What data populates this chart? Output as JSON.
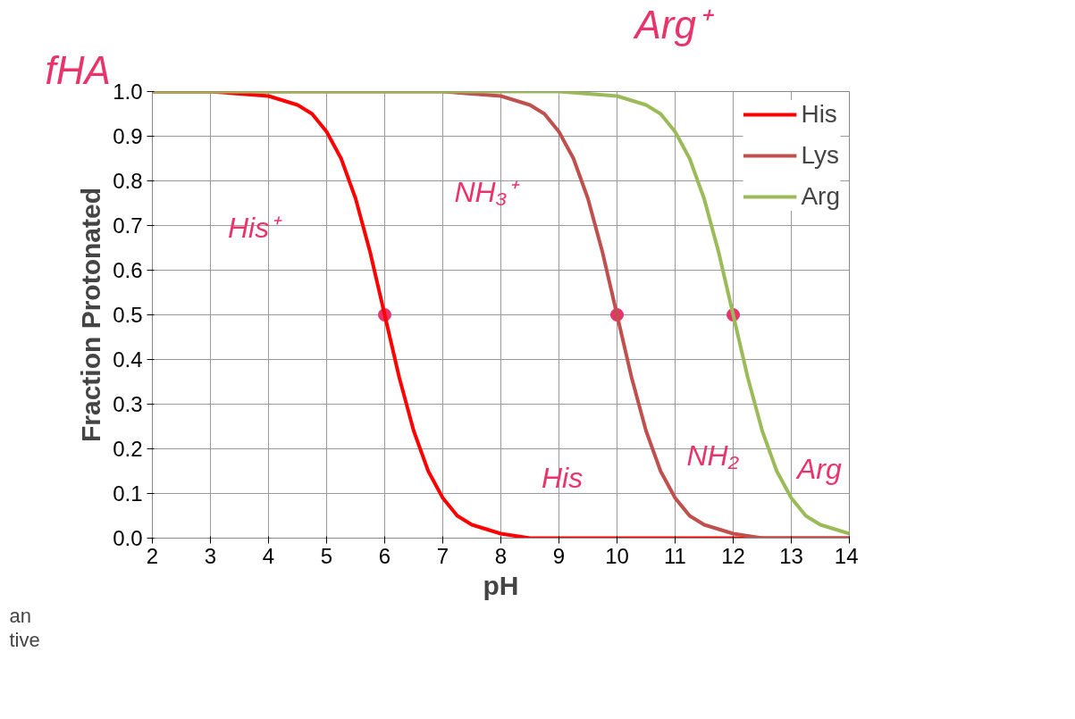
{
  "chart_data": {
    "type": "line",
    "xlabel": "pH",
    "ylabel": "Fraction Protonated",
    "xlim": [
      2,
      14
    ],
    "ylim": [
      0,
      1
    ],
    "xticks": [
      2,
      3,
      4,
      5,
      6,
      7,
      8,
      9,
      10,
      11,
      12,
      13,
      14
    ],
    "yticks": [
      {
        "value": 0,
        "label": "0.0"
      },
      {
        "value": 0.1,
        "label": "0.1"
      },
      {
        "value": 0.2,
        "label": "0.2"
      },
      {
        "value": 0.3,
        "label": "0.3"
      },
      {
        "value": 0.4,
        "label": "0.4"
      },
      {
        "value": 0.5,
        "label": "0.5"
      },
      {
        "value": 0.6,
        "label": "0.6"
      },
      {
        "value": 0.7,
        "label": "0.7"
      },
      {
        "value": 0.8,
        "label": "0.8"
      },
      {
        "value": 0.9,
        "label": "0.9"
      },
      {
        "value": 1,
        "label": "1.0"
      }
    ],
    "grid": true,
    "legend": "top right",
    "series": [
      {
        "name": "His",
        "color": "#ff0000",
        "x": [
          2,
          3,
          4,
          4.5,
          4.75,
          5,
          5.25,
          5.5,
          5.75,
          6,
          6.25,
          6.5,
          6.75,
          7,
          7.25,
          7.5,
          8,
          8.5,
          9,
          10,
          11,
          12,
          13,
          14
        ],
        "values": [
          1.0,
          1.0,
          0.99,
          0.97,
          0.95,
          0.91,
          0.85,
          0.76,
          0.64,
          0.5,
          0.36,
          0.24,
          0.15,
          0.09,
          0.05,
          0.03,
          0.01,
          0.0,
          0.0,
          0.0,
          0.0,
          0.0,
          0.0,
          0.0
        ]
      },
      {
        "name": "Lys",
        "color": "#c0504d",
        "x": [
          2,
          4,
          6,
          7,
          8,
          8.5,
          8.75,
          9,
          9.25,
          9.5,
          9.75,
          10,
          10.25,
          10.5,
          10.75,
          11,
          11.25,
          11.5,
          12,
          12.5,
          13,
          14
        ],
        "values": [
          1.0,
          1.0,
          1.0,
          1.0,
          0.99,
          0.97,
          0.95,
          0.91,
          0.85,
          0.76,
          0.64,
          0.5,
          0.36,
          0.24,
          0.15,
          0.09,
          0.05,
          0.03,
          0.01,
          0.0,
          0.0,
          0.0
        ]
      },
      {
        "name": "Arg",
        "color": "#9bbb59",
        "x": [
          2,
          4,
          6,
          8,
          9,
          10,
          10.5,
          10.75,
          11,
          11.25,
          11.5,
          11.75,
          12,
          12.25,
          12.5,
          12.75,
          13,
          13.25,
          13.5,
          14
        ],
        "values": [
          1.0,
          1.0,
          1.0,
          1.0,
          1.0,
          0.99,
          0.97,
          0.95,
          0.91,
          0.85,
          0.76,
          0.64,
          0.5,
          0.36,
          0.24,
          0.15,
          0.09,
          0.05,
          0.03,
          0.01
        ]
      },
      {
        "type": "scatter",
        "color": "#e8336b",
        "x": [
          6,
          10,
          12
        ],
        "values": [
          0.5,
          0.5,
          0.5
        ],
        "marker": "circle"
      }
    ],
    "annotations": [
      "fHA",
      "Arg⁺",
      "His⁺",
      "NH₃⁺",
      "His",
      "NH₂",
      "Arg",
      "an",
      "tive"
    ]
  }
}
